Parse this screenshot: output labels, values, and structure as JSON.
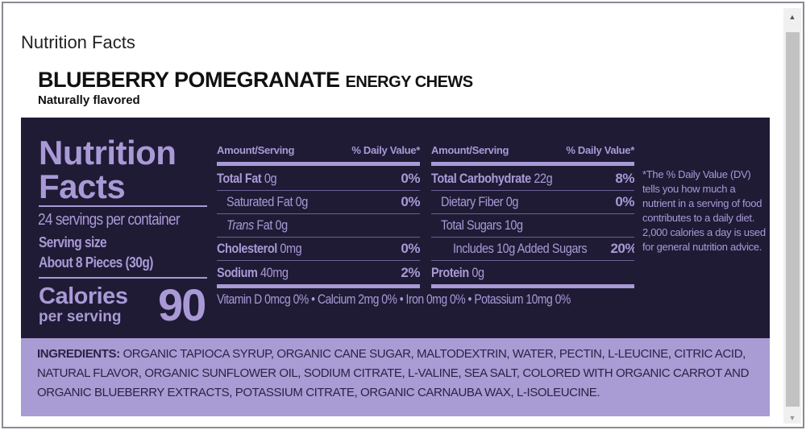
{
  "page": {
    "title": "Nutrition Facts"
  },
  "product": {
    "name": "BLUEBERRY POMEGRANATE",
    "type": "ENERGY CHEWS",
    "flavor": "Naturally flavored"
  },
  "panel": {
    "heading_line1": "Nutrition",
    "heading_line2": "Facts",
    "servings": "24 servings per container",
    "serving_size_label": "Serving size",
    "serving_size_value": "About 8 Pieces (30g)",
    "calories_label": "Calories",
    "calories_sub": "per serving",
    "calories_value": "90",
    "left_table": {
      "amount_header": "Amount/Serving",
      "dv_header": "% Daily Value*",
      "rows": [
        {
          "label": "Total Fat",
          "amount": "0g",
          "dv": "0%"
        },
        {
          "label": "Saturated Fat",
          "amount": "0g",
          "dv": "0%"
        },
        {
          "label": "Trans",
          "label_suffix": "Fat",
          "amount": "0g",
          "dv": ""
        },
        {
          "label": "Cholesterol",
          "amount": "0mg",
          "dv": "0%"
        },
        {
          "label": "Sodium",
          "amount": "40mg",
          "dv": "2%"
        }
      ]
    },
    "right_table": {
      "amount_header": "Amount/Serving",
      "dv_header": "% Daily Value*",
      "rows": [
        {
          "label": "Total Carbohydrate",
          "amount": "22g",
          "dv": "8%"
        },
        {
          "label": "Dietary Fiber",
          "amount": "0g",
          "dv": "0%"
        },
        {
          "label": "Total Sugars",
          "amount": "10g",
          "dv": ""
        },
        {
          "label": "Includes 10g Added Sugars",
          "amount": "",
          "dv": "20%"
        },
        {
          "label": "Protein",
          "amount": "0g",
          "dv": ""
        }
      ]
    },
    "vitamins": "Vitamin D 0mcg 0% • Calcium 2mg 0% • Iron 0mg 0% • Potassium 10mg 0%",
    "footnote": "*The % Daily Value (DV) tells you how much a nutrient in a serving of food contributes to a daily diet. 2,000 calories a day is used for general nutrition advice."
  },
  "ingredients": {
    "label": "INGREDIENTS:",
    "text": "ORGANIC TAPIOCA SYRUP, ORGANIC CANE SUGAR, MALTODEXTRIN, WATER, PECTIN, L-LEUCINE, CITRIC ACID, NATURAL FLAVOR, ORGANIC SUNFLOWER OIL, SODIUM CITRATE, L-VALINE, SEA SALT, COLORED WITH ORGANIC CARROT AND ORGANIC BLUEBERRY EXTRACTS, POTASSIUM CITRATE, ORGANIC CARNAUBA WAX, L-ISOLEUCINE."
  },
  "colors": {
    "panel_bg": "#1f1b35",
    "accent": "#a99ad6",
    "ingredients_bg": "#a99bd3"
  }
}
